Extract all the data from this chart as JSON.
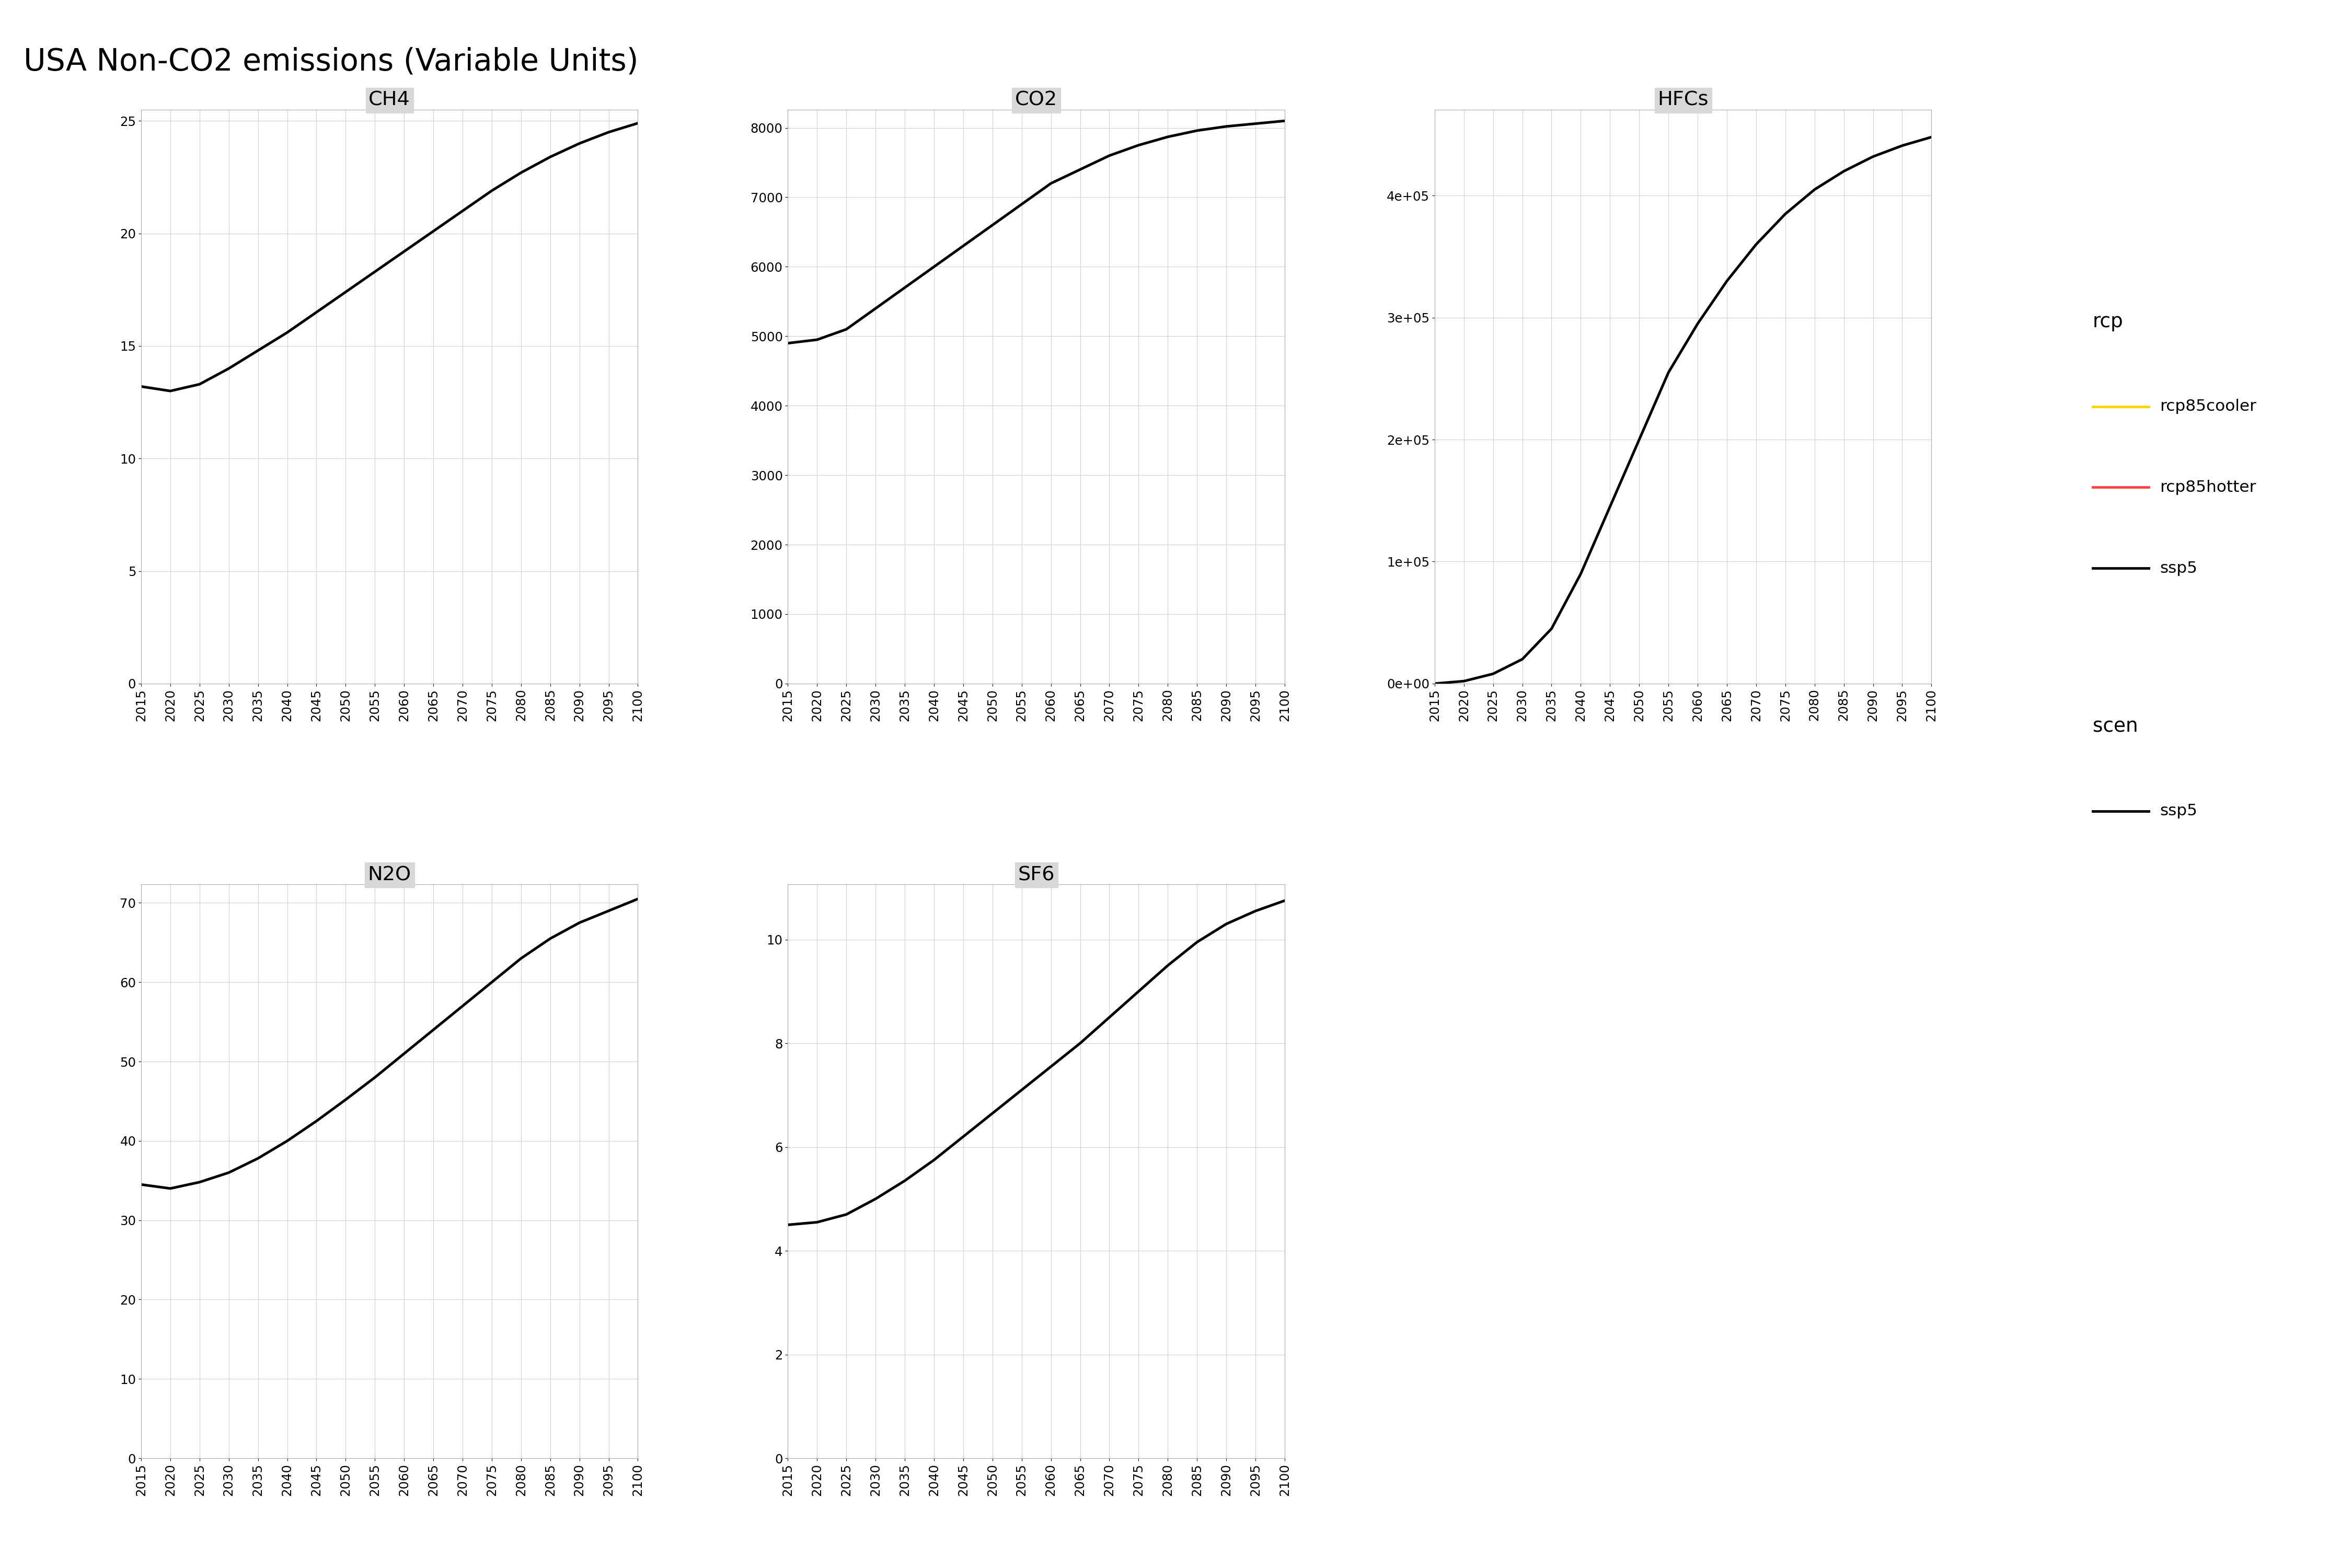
{
  "title": "USA Non-CO2 emissions (Variable Units)",
  "years": [
    2015,
    2020,
    2025,
    2030,
    2035,
    2040,
    2045,
    2050,
    2055,
    2060,
    2065,
    2070,
    2075,
    2080,
    2085,
    2090,
    2095,
    2100
  ],
  "CH4": [
    13.2,
    13.0,
    13.3,
    14.0,
    14.8,
    15.6,
    16.5,
    17.4,
    18.3,
    19.2,
    20.1,
    21.0,
    21.9,
    22.7,
    23.4,
    24.0,
    24.5,
    24.9
  ],
  "CO2": [
    4900,
    4950,
    5100,
    5400,
    5700,
    6000,
    6300,
    6600,
    6900,
    7200,
    7400,
    7600,
    7750,
    7870,
    7960,
    8020,
    8060,
    8100
  ],
  "HFCs": [
    0,
    2000,
    8000,
    20000,
    45000,
    90000,
    145000,
    200000,
    255000,
    295000,
    330000,
    360000,
    385000,
    405000,
    420000,
    432000,
    441000,
    448000
  ],
  "N2O": [
    34.5,
    34.0,
    34.8,
    36.0,
    37.8,
    40.0,
    42.5,
    45.2,
    48.0,
    51.0,
    54.0,
    57.0,
    60.0,
    63.0,
    65.5,
    67.5,
    69.0,
    70.5
  ],
  "SF6": [
    4.5,
    4.55,
    4.7,
    5.0,
    5.35,
    5.75,
    6.2,
    6.65,
    7.1,
    7.55,
    8.0,
    8.5,
    9.0,
    9.5,
    9.95,
    10.3,
    10.55,
    10.75
  ],
  "line_color": "#000000",
  "line_width": 1.8,
  "panel_titles": [
    "CH4",
    "CO2",
    "HFCs",
    "N2O",
    "SF6"
  ],
  "bg_color": "#ffffff",
  "panel_bg": "#ffffff",
  "grid_color": "#d0d0d0",
  "title_fontsize": 14,
  "panel_title_fontsize": 11,
  "tick_fontsize": 8,
  "legend_rcp_title": "rcp",
  "legend_rcp_entries": [
    [
      "rcp85cooler",
      "#FFD700"
    ],
    [
      "rcp85hotter",
      "#FF4444"
    ],
    [
      "ssp5",
      "#000000"
    ]
  ],
  "legend_scen_title": "scen",
  "legend_scen_entries": [
    [
      "ssp5",
      "#000000"
    ]
  ]
}
